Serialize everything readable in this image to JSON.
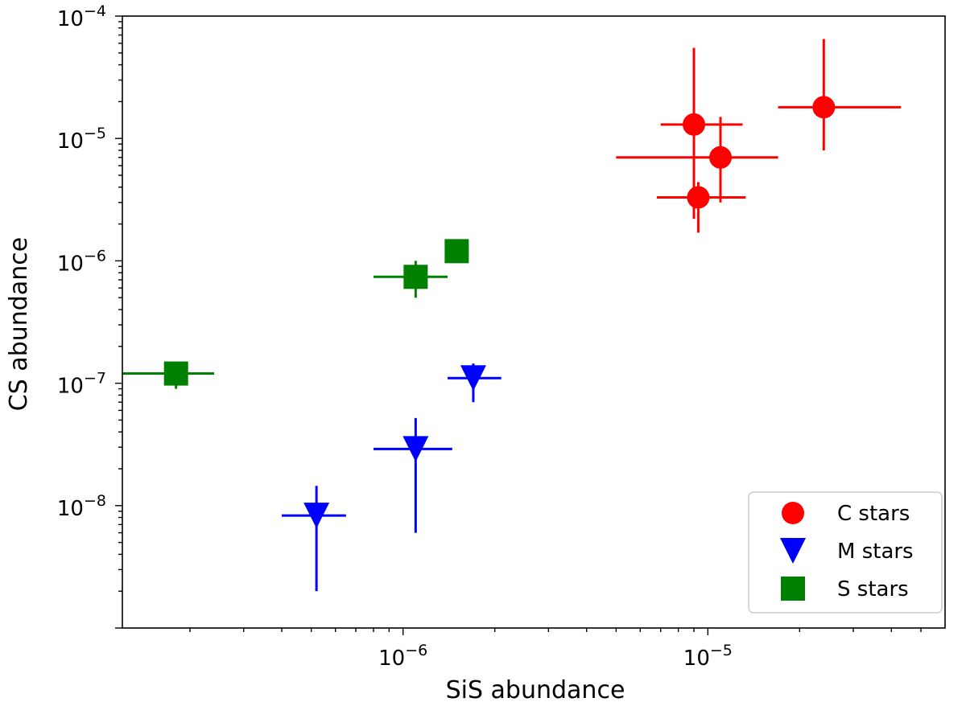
{
  "chart_data": {
    "type": "scatter",
    "title": "",
    "xlabel": "SiS abundance",
    "ylabel": "CS abundance",
    "xscale": "log",
    "yscale": "log",
    "xlim": [
      1.2e-07,
      6e-05
    ],
    "ylim": [
      1e-09,
      0.0001
    ],
    "x_ticks": [
      {
        "value": 1e-06,
        "base": "10",
        "exp": "−6"
      },
      {
        "value": 1e-05,
        "base": "10",
        "exp": "−5"
      }
    ],
    "y_ticks": [
      {
        "value": 1e-08,
        "base": "10",
        "exp": "−8"
      },
      {
        "value": 1e-07,
        "base": "10",
        "exp": "−7"
      },
      {
        "value": 1e-06,
        "base": "10",
        "exp": "−6"
      },
      {
        "value": 1e-05,
        "base": "10",
        "exp": "−5"
      },
      {
        "value": 0.0001,
        "base": "10",
        "exp": "−4"
      }
    ],
    "legend_position": "lower-right",
    "series": [
      {
        "name": "C stars",
        "marker": "circle",
        "color": "#ff0000",
        "points": [
          {
            "x": 9e-06,
            "y": 1.3e-05,
            "xerr": [
              7e-06,
              1.3e-05
            ],
            "yerr": [
              2.2e-06,
              5.5e-05
            ]
          },
          {
            "x": 1.1e-05,
            "y": 7e-06,
            "xerr": [
              5e-06,
              1.7e-05
            ],
            "yerr": [
              3e-06,
              1.5e-05
            ]
          },
          {
            "x": 9.3e-06,
            "y": 3.3e-06,
            "xerr": [
              6.8e-06,
              1.33e-05
            ],
            "yerr": [
              1.7e-06,
              4.4e-06
            ]
          },
          {
            "x": 2.4e-05,
            "y": 1.8e-05,
            "xerr": [
              1.7e-05,
              4.3e-05
            ],
            "yerr": [
              8e-06,
              6.5e-05
            ]
          }
        ]
      },
      {
        "name": "M stars",
        "marker": "triangle-down",
        "color": "#0000ff",
        "points": [
          {
            "x": 5.2e-07,
            "y": 8.3e-09,
            "xerr": [
              4e-07,
              6.5e-07
            ],
            "yerr": [
              2e-09,
              1.45e-08
            ]
          },
          {
            "x": 1.1e-06,
            "y": 2.9e-08,
            "xerr": [
              8e-07,
              1.45e-06
            ],
            "yerr": [
              6e-09,
              5.2e-08
            ]
          },
          {
            "x": 1.7e-06,
            "y": 1.1e-07,
            "xerr": [
              1.4e-06,
              2.1e-06
            ],
            "yerr": [
              7e-08,
              1.45e-07
            ]
          }
        ]
      },
      {
        "name": "S stars",
        "marker": "square",
        "color": "#008000",
        "points": [
          {
            "x": 1.8e-07,
            "y": 1.2e-07,
            "xerr": [
              1.2e-07,
              2.4e-07
            ],
            "yerr": [
              9e-08,
              1.2e-07
            ]
          },
          {
            "x": 1.1e-06,
            "y": 7.4e-07,
            "xerr": [
              8e-07,
              1.4e-06
            ],
            "yerr": [
              5e-07,
              1e-06
            ]
          },
          {
            "x": 1.5e-06,
            "y": 1.2e-06,
            "xerr": [
              1.5e-06,
              1.5e-06
            ],
            "yerr": [
              1.2e-06,
              1.2e-06
            ]
          }
        ]
      }
    ]
  }
}
